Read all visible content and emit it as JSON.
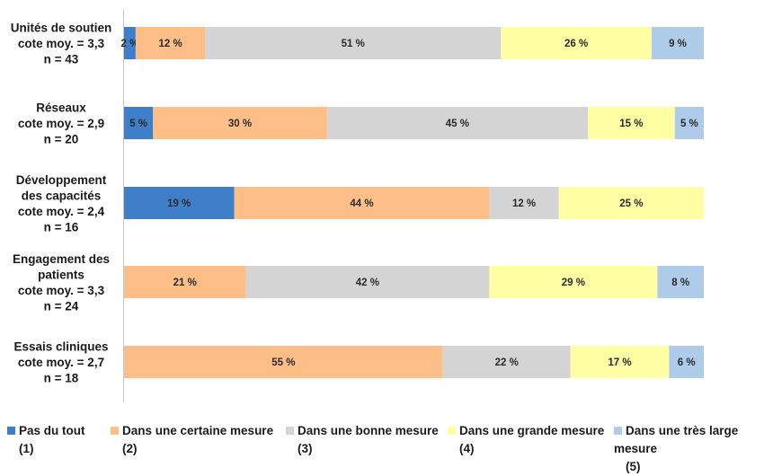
{
  "chart_data": {
    "type": "bar",
    "orientation": "horizontal",
    "stacked": "100%",
    "categories": [
      [
        "Unités de soutien",
        "cote moy. = 3,3",
        "n = 43"
      ],
      [
        "Réseaux",
        "cote moy. = 2,9",
        "n = 20"
      ],
      [
        "Développement",
        "des capacités",
        "cote moy. = 2,4",
        "n = 16"
      ],
      [
        "Engagement des",
        "patients",
        "cote moy. = 3,3",
        "n = 24"
      ],
      [
        "Essais cliniques",
        "cote moy. = 2,7",
        "n = 18"
      ]
    ],
    "series": [
      {
        "name": "Pas du tout",
        "code": "(1)",
        "color": "#3f7ec8",
        "values": [
          2,
          5,
          19,
          0,
          0
        ]
      },
      {
        "name": "Dans une certaine mesure",
        "code": "(2)",
        "color": "#fdbf87",
        "values": [
          12,
          30,
          44,
          21,
          55
        ]
      },
      {
        "name": "Dans une bonne mesure",
        "code": "(3)",
        "color": "#d4d4d4",
        "values": [
          51,
          45,
          12,
          42,
          22
        ]
      },
      {
        "name": "Dans une grande mesure",
        "code": "(4)",
        "color": "#fefea3",
        "values": [
          26,
          15,
          25,
          29,
          17
        ]
      },
      {
        "name": "Dans une très large mesure",
        "code": "(5)",
        "color": "#aecbea",
        "values": [
          9,
          5,
          0,
          8,
          6
        ]
      }
    ],
    "value_suffix": " %",
    "xlim": [
      0,
      100
    ],
    "legend_position": "bottom",
    "grid": false
  }
}
